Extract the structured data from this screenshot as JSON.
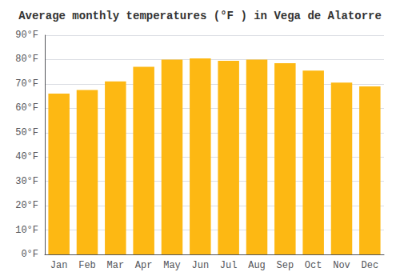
{
  "chart_data": {
    "type": "bar",
    "title": "Average monthly temperatures (°F ) in Vega de Alatorre",
    "categories": [
      "Jan",
      "Feb",
      "Mar",
      "Apr",
      "May",
      "Jun",
      "Jul",
      "Aug",
      "Sep",
      "Oct",
      "Nov",
      "Dec"
    ],
    "values": [
      66,
      67.5,
      71,
      77,
      80,
      80.5,
      79.5,
      80,
      78.5,
      75.5,
      70.5,
      69
    ],
    "color": "#FDB813",
    "ylim": [
      0,
      90
    ],
    "yticks": [
      {
        "value": 0,
        "label": "0°F"
      },
      {
        "value": 10,
        "label": "10°F"
      },
      {
        "value": 20,
        "label": "20°F"
      },
      {
        "value": 30,
        "label": "30°F"
      },
      {
        "value": 40,
        "label": "40°F"
      },
      {
        "value": 50,
        "label": "50°F"
      },
      {
        "value": 60,
        "label": "60°F"
      },
      {
        "value": 70,
        "label": "70°F"
      },
      {
        "value": 80,
        "label": "80°F"
      },
      {
        "value": 90,
        "label": "90°F"
      }
    ],
    "grid": true
  }
}
